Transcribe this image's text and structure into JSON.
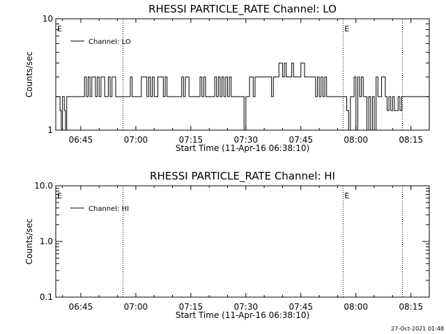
{
  "footer": {
    "timestamp": "27-Oct-2021 01:48"
  },
  "chart_data": [
    {
      "type": "line",
      "title": "RHESSI PARTICLE_RATE Channel: LO",
      "xlabel": "Start Time (11-Apr-16 06:38:10)",
      "ylabel": "Counts/sec",
      "yscale": "log",
      "xlim": [
        "06:38:10",
        "08:20:00"
      ],
      "ylim": [
        1,
        10
      ],
      "x_ticks": [
        "06:45",
        "07:00",
        "07:15",
        "07:30",
        "07:45",
        "08:00",
        "08:15"
      ],
      "y_ticks": [
        "1",
        "10"
      ],
      "grid": false,
      "legend_position": "top-left",
      "series": [
        {
          "name": "Channel: LO",
          "x": [
            "06:38:10",
            "06:39:00",
            "06:39:20",
            "06:39:40",
            "06:40:00",
            "06:40:30",
            "06:40:50",
            "06:41:10",
            "06:41:30",
            "06:42:00",
            "06:45:00",
            "06:46:00",
            "06:46:30",
            "06:47:00",
            "06:47:30",
            "06:48:00",
            "06:48:30",
            "06:49:00",
            "06:49:30",
            "06:50:00",
            "06:50:30",
            "06:51:00",
            "06:51:30",
            "06:52:00",
            "06:52:30",
            "06:53:00",
            "06:53:30",
            "06:54:00",
            "06:54:30",
            "06:55:00",
            "06:58:00",
            "06:58:30",
            "06:59:00",
            "07:00:00",
            "07:01:00",
            "07:01:30",
            "07:03:00",
            "07:03:30",
            "07:04:00",
            "07:04:30",
            "07:05:00",
            "07:05:30",
            "07:06:00",
            "07:07:00",
            "07:07:30",
            "07:08:00",
            "07:08:30",
            "07:09:00",
            "07:12:00",
            "07:12:30",
            "07:13:00",
            "07:13:30",
            "07:14:00",
            "07:14:30",
            "07:15:00",
            "07:17:00",
            "07:17:30",
            "07:18:00",
            "07:18:30",
            "07:19:00",
            "07:21:00",
            "07:21:30",
            "07:22:00",
            "07:22:30",
            "07:23:00",
            "07:23:30",
            "07:24:00",
            "07:24:30",
            "07:25:00",
            "07:25:30",
            "07:26:00",
            "07:26:30",
            "07:29:00",
            "07:29:30",
            "07:30:00",
            "07:30:30",
            "07:31:00",
            "07:31:30",
            "07:32:00",
            "07:32:30",
            "07:33:00",
            "07:35:00",
            "07:35:30",
            "07:36:00",
            "07:36:30",
            "07:37:00",
            "07:37:30",
            "07:38:00",
            "07:39:00",
            "07:40:00",
            "07:40:30",
            "07:41:00",
            "07:41:30",
            "07:42:00",
            "07:42:30",
            "07:43:00",
            "07:44:00",
            "07:44:30",
            "07:45:00",
            "07:45:30",
            "07:46:00",
            "07:47:00",
            "07:48:00",
            "07:48:30",
            "07:49:00",
            "07:49:30",
            "07:50:00",
            "07:50:30",
            "07:51:00",
            "07:51:30",
            "07:52:00",
            "07:53:00",
            "07:55:00",
            "07:56:00",
            "07:57:00",
            "07:57:30",
            "07:58:00",
            "07:58:30",
            "07:59:00",
            "07:59:30",
            "08:00:00",
            "08:00:30",
            "08:01:00",
            "08:01:30",
            "08:02:00",
            "08:02:30",
            "08:03:00",
            "08:03:30",
            "08:04:00",
            "08:04:30",
            "08:05:00",
            "08:05:30",
            "08:06:00",
            "08:07:00",
            "08:08:00",
            "08:08:30",
            "08:09:00",
            "08:09:30",
            "08:10:00",
            "08:10:30",
            "08:11:00",
            "08:11:30",
            "08:12:00",
            "08:12:30",
            "08:13:00",
            "08:14:00",
            "08:15:00",
            "08:17:00",
            "08:20:00"
          ],
          "y": [
            2,
            2,
            1.5,
            1,
            2,
            1.5,
            1,
            2,
            2,
            2,
            2,
            3,
            2,
            3,
            2,
            3,
            3,
            2,
            3,
            2,
            3,
            3,
            2,
            2,
            3,
            2,
            3,
            3,
            2,
            2,
            2,
            3,
            2,
            2,
            2,
            3,
            2,
            3,
            2,
            3,
            2,
            2,
            3,
            3,
            2,
            3,
            2,
            2,
            2,
            3,
            2,
            3,
            3,
            2,
            2,
            2,
            3,
            2,
            3,
            2,
            2,
            3,
            2,
            3,
            2,
            3,
            2,
            3,
            2,
            3,
            2,
            2,
            2,
            1,
            2,
            2,
            3,
            3,
            2,
            3,
            3,
            3,
            3,
            3,
            3,
            2,
            3,
            3,
            4,
            3,
            4,
            3,
            3,
            3,
            4,
            3,
            3,
            3,
            4,
            4,
            3,
            3,
            3,
            3,
            2,
            3,
            2,
            3,
            2,
            3,
            2,
            2,
            2,
            2,
            2,
            1.5,
            1,
            2,
            2,
            3,
            1,
            3,
            2,
            3,
            2,
            2,
            1,
            2,
            1,
            2,
            1,
            3,
            2,
            3,
            2,
            1.5,
            2,
            1.5,
            2,
            1.5,
            1.5,
            2,
            1.5,
            2,
            2,
            2,
            2,
            2,
            2
          ]
        }
      ],
      "markers": [
        {
          "label": "E",
          "x": "06:38:10"
        },
        {
          "label": "E",
          "x": "07:56:30"
        }
      ],
      "vlines": [
        "06:56:30",
        "07:56:30",
        "08:12:40"
      ]
    },
    {
      "type": "line",
      "title": "RHESSI PARTICLE_RATE Channel: HI",
      "xlabel": "Start Time (11-Apr-16 06:38:10)",
      "ylabel": "Counts/sec",
      "yscale": "log",
      "xlim": [
        "06:38:10",
        "08:20:00"
      ],
      "ylim": [
        0.1,
        10
      ],
      "x_ticks": [
        "06:45",
        "07:00",
        "07:15",
        "07:30",
        "07:45",
        "08:00",
        "08:15"
      ],
      "y_ticks": [
        "0.1",
        "1.0",
        "10.0"
      ],
      "grid": false,
      "legend_position": "top-left",
      "series": [
        {
          "name": "Channel: HI",
          "x": [],
          "y": []
        }
      ],
      "markers": [
        {
          "label": "E",
          "x": "06:38:10"
        },
        {
          "label": "E",
          "x": "07:56:30"
        }
      ],
      "vlines": [
        "06:56:30",
        "07:56:30",
        "08:12:40"
      ]
    }
  ]
}
